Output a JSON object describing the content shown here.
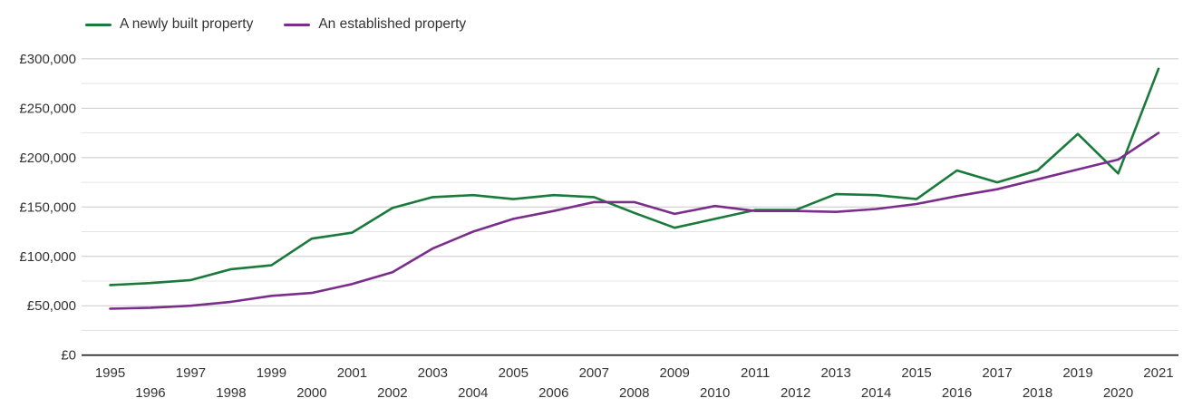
{
  "legend": {
    "items": [
      {
        "label": "A newly built property",
        "color": "#1a7a3c"
      },
      {
        "label": "An established property",
        "color": "#7b2d8c"
      }
    ]
  },
  "chart_data": {
    "type": "line",
    "x": [
      1995,
      1996,
      1997,
      1998,
      1999,
      2000,
      2001,
      2002,
      2003,
      2004,
      2005,
      2006,
      2007,
      2008,
      2009,
      2010,
      2011,
      2012,
      2013,
      2014,
      2015,
      2016,
      2017,
      2018,
      2019,
      2020,
      2021
    ],
    "x_tick_labels": [
      "1995",
      "1996",
      "1997",
      "1998",
      "1999",
      "2000",
      "2001",
      "2002",
      "2003",
      "2004",
      "2005",
      "2006",
      "2007",
      "2008",
      "2009",
      "2010",
      "2011",
      "2012",
      "2013",
      "2014",
      "2015",
      "2016",
      "2017",
      "2018",
      "2019",
      "2020",
      "2021"
    ],
    "y_tick_labels": [
      "£0",
      "£50,000",
      "£100,000",
      "£150,000",
      "£200,000",
      "£250,000",
      "£300,000"
    ],
    "ylim": [
      0,
      300000
    ],
    "ytick_major": 50000,
    "ytick_minor": 25000,
    "grid": true,
    "legend_position": "top-left",
    "currency": "GBP",
    "series": [
      {
        "name": "A newly built property",
        "color": "#1a7a3c",
        "values": [
          71000,
          73000,
          76000,
          87000,
          91000,
          118000,
          124000,
          149000,
          160000,
          162000,
          158000,
          162000,
          160000,
          144000,
          129000,
          138000,
          147000,
          147000,
          163000,
          162000,
          158000,
          187000,
          175000,
          187000,
          224000,
          184000,
          290000
        ]
      },
      {
        "name": "An established property",
        "color": "#7b2d8c",
        "values": [
          47000,
          48000,
          50000,
          54000,
          60000,
          63000,
          72000,
          84000,
          108000,
          125000,
          138000,
          146000,
          155000,
          155000,
          143000,
          151000,
          146000,
          146000,
          145000,
          148000,
          153000,
          161000,
          168000,
          178000,
          188000,
          198000,
          225000
        ]
      }
    ]
  }
}
